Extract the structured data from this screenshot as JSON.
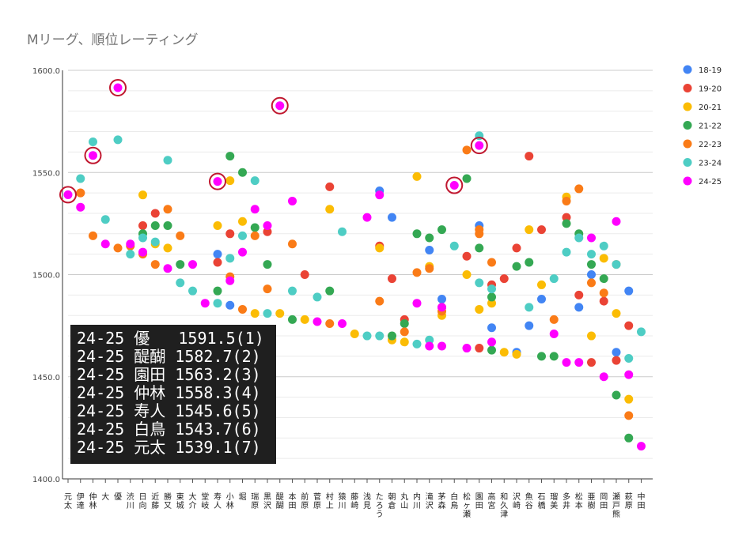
{
  "chart_data": {
    "type": "scatter",
    "title": "Mリーグ、順位レーティング",
    "ylim": [
      1400,
      1600
    ],
    "yticks": [
      "1400.0",
      "1450.0",
      "1500.0",
      "1550.0",
      "1600.0"
    ],
    "categories": [
      "元太",
      "伊達",
      "仲林",
      "大",
      "優",
      "渋川",
      "日向",
      "近藤",
      "勝又",
      "東城",
      "大介",
      "堂岐",
      "寿人",
      "小林",
      "堀",
      "瑞原",
      "黒沢",
      "醍醐",
      "本田",
      "前原",
      "菅原",
      "村上",
      "猿川",
      "藤崎",
      "浅見",
      "たろう",
      "朝倉",
      "丸山",
      "内川",
      "滝沢",
      "茅森",
      "白鳥",
      "松ヶ瀬",
      "園田",
      "高宮",
      "和久津",
      "沢崎",
      "魚谷",
      "石橋",
      "瑠美",
      "多井",
      "松本",
      "亜樹",
      "岡田",
      "瀬戸熊",
      "萩原",
      "中田"
    ],
    "series": [
      {
        "name": "18-19",
        "color": "#4285f4",
        "points": [
          [
            12,
            1510
          ],
          [
            13,
            1485
          ],
          [
            25,
            1541
          ],
          [
            26,
            1528
          ],
          [
            29,
            1512
          ],
          [
            30,
            1488
          ],
          [
            33,
            1524
          ],
          [
            34,
            1474
          ],
          [
            36,
            1462
          ],
          [
            37,
            1475
          ],
          [
            38,
            1488
          ],
          [
            41,
            1484
          ],
          [
            42,
            1500
          ],
          [
            44,
            1462
          ],
          [
            45,
            1492
          ]
        ]
      },
      {
        "name": "19-20",
        "color": "#ea4335",
        "points": [
          [
            1,
            1540
          ],
          [
            6,
            1524
          ],
          [
            7,
            1530
          ],
          [
            12,
            1506
          ],
          [
            13,
            1520
          ],
          [
            16,
            1521
          ],
          [
            19,
            1500
          ],
          [
            21,
            1543
          ],
          [
            25,
            1514
          ],
          [
            26,
            1498
          ],
          [
            27,
            1478
          ],
          [
            30,
            1484
          ],
          [
            32,
            1509
          ],
          [
            33,
            1464
          ],
          [
            34,
            1495
          ],
          [
            35,
            1498
          ],
          [
            36,
            1513
          ],
          [
            37,
            1558
          ],
          [
            38,
            1522
          ],
          [
            40,
            1528
          ],
          [
            41,
            1490
          ],
          [
            42,
            1457
          ],
          [
            43,
            1487
          ],
          [
            44,
            1458
          ],
          [
            45,
            1475
          ]
        ]
      },
      {
        "name": "20-21",
        "color": "#fbbc04",
        "points": [
          [
            6,
            1539
          ],
          [
            7,
            1515
          ],
          [
            8,
            1513
          ],
          [
            12,
            1524
          ],
          [
            13,
            1546
          ],
          [
            14,
            1526
          ],
          [
            15,
            1481
          ],
          [
            17,
            1481
          ],
          [
            19,
            1478
          ],
          [
            21,
            1532
          ],
          [
            23,
            1471
          ],
          [
            25,
            1513
          ],
          [
            26,
            1468
          ],
          [
            27,
            1467
          ],
          [
            28,
            1548
          ],
          [
            29,
            1504
          ],
          [
            30,
            1480
          ],
          [
            32,
            1500
          ],
          [
            33,
            1483
          ],
          [
            34,
            1486
          ],
          [
            35,
            1462
          ],
          [
            36,
            1461
          ],
          [
            37,
            1522
          ],
          [
            38,
            1495
          ],
          [
            40,
            1538
          ],
          [
            42,
            1470
          ],
          [
            43,
            1508
          ],
          [
            44,
            1481
          ],
          [
            45,
            1439
          ]
        ]
      },
      {
        "name": "21-22",
        "color": "#34a853",
        "points": [
          [
            6,
            1520
          ],
          [
            7,
            1524
          ],
          [
            8,
            1524
          ],
          [
            9,
            1505
          ],
          [
            12,
            1492
          ],
          [
            13,
            1558
          ],
          [
            14,
            1550
          ],
          [
            15,
            1523
          ],
          [
            16,
            1505
          ],
          [
            18,
            1478
          ],
          [
            21,
            1492
          ],
          [
            26,
            1470
          ],
          [
            27,
            1476
          ],
          [
            28,
            1520
          ],
          [
            29,
            1518
          ],
          [
            30,
            1522
          ],
          [
            32,
            1547
          ],
          [
            33,
            1513
          ],
          [
            34,
            1489
          ],
          [
            34,
            1463
          ],
          [
            36,
            1504
          ],
          [
            37,
            1506
          ],
          [
            38,
            1460
          ],
          [
            39,
            1460
          ],
          [
            40,
            1525
          ],
          [
            41,
            1520
          ],
          [
            42,
            1505
          ],
          [
            43,
            1498
          ],
          [
            44,
            1441
          ],
          [
            45,
            1420
          ]
        ]
      },
      {
        "name": "22-23",
        "color": "#fa7b17",
        "points": [
          [
            1,
            1540
          ],
          [
            2,
            1519
          ],
          [
            4,
            1513
          ],
          [
            5,
            1514
          ],
          [
            6,
            1510
          ],
          [
            7,
            1505
          ],
          [
            8,
            1532
          ],
          [
            9,
            1519
          ],
          [
            13,
            1499
          ],
          [
            14,
            1483
          ],
          [
            15,
            1519
          ],
          [
            16,
            1493
          ],
          [
            18,
            1515
          ],
          [
            21,
            1476
          ],
          [
            25,
            1487
          ],
          [
            27,
            1472
          ],
          [
            28,
            1501
          ],
          [
            29,
            1503
          ],
          [
            30,
            1482
          ],
          [
            32,
            1561
          ],
          [
            33,
            1520
          ],
          [
            33,
            1522
          ],
          [
            34,
            1506
          ],
          [
            39,
            1478
          ],
          [
            40,
            1536
          ],
          [
            41,
            1542
          ],
          [
            42,
            1496
          ],
          [
            43,
            1491
          ],
          [
            44,
            1505
          ],
          [
            45,
            1431
          ]
        ]
      },
      {
        "name": "23-24",
        "color": "#4ecdc4",
        "points": [
          [
            1,
            1547
          ],
          [
            2,
            1565
          ],
          [
            3,
            1527
          ],
          [
            4,
            1566
          ],
          [
            5,
            1510
          ],
          [
            6,
            1518
          ],
          [
            7,
            1516
          ],
          [
            8,
            1556
          ],
          [
            9,
            1496
          ],
          [
            10,
            1492
          ],
          [
            12,
            1486
          ],
          [
            13,
            1508
          ],
          [
            14,
            1519
          ],
          [
            15,
            1546
          ],
          [
            16,
            1481
          ],
          [
            18,
            1492
          ],
          [
            20,
            1489
          ],
          [
            22,
            1521
          ],
          [
            24,
            1470
          ],
          [
            25,
            1470
          ],
          [
            28,
            1466
          ],
          [
            29,
            1468
          ],
          [
            31,
            1514
          ],
          [
            33,
            1496
          ],
          [
            33,
            1568
          ],
          [
            34,
            1493
          ],
          [
            37,
            1484
          ],
          [
            39,
            1498
          ],
          [
            40,
            1511
          ],
          [
            41,
            1518
          ],
          [
            42,
            1510
          ],
          [
            43,
            1514
          ],
          [
            44,
            1505
          ],
          [
            45,
            1459
          ],
          [
            46,
            1472
          ]
        ]
      },
      {
        "name": "24-25",
        "color": "#ff00ff",
        "points": [
          [
            0,
            1539.1
          ],
          [
            1,
            1533
          ],
          [
            2,
            1558.3
          ],
          [
            3,
            1515
          ],
          [
            4,
            1591.5
          ],
          [
            5,
            1515
          ],
          [
            6,
            1511
          ],
          [
            8,
            1503
          ],
          [
            10,
            1505
          ],
          [
            11,
            1486
          ],
          [
            12,
            1545.6
          ],
          [
            13,
            1497
          ],
          [
            14,
            1511
          ],
          [
            15,
            1532
          ],
          [
            16,
            1524
          ],
          [
            17,
            1582.7
          ],
          [
            18,
            1536
          ],
          [
            20,
            1477
          ],
          [
            22,
            1476
          ],
          [
            24,
            1528
          ],
          [
            25,
            1539
          ],
          [
            28,
            1486
          ],
          [
            29,
            1465
          ],
          [
            30,
            1484
          ],
          [
            30,
            1465
          ],
          [
            31,
            1543.7
          ],
          [
            32,
            1464
          ],
          [
            33,
            1563.2
          ],
          [
            34,
            1467
          ],
          [
            39,
            1471
          ],
          [
            40,
            1457
          ],
          [
            41,
            1457
          ],
          [
            42,
            1518
          ],
          [
            43,
            1450
          ],
          [
            44,
            1526
          ],
          [
            45,
            1451
          ],
          [
            46,
            1416
          ]
        ]
      }
    ],
    "highlighted": [
      [
        0,
        1539.1
      ],
      [
        2,
        1558.3
      ],
      [
        4,
        1591.5
      ],
      [
        12,
        1545.6
      ],
      [
        17,
        1582.7
      ],
      [
        31,
        1543.7
      ],
      [
        33,
        1563.2
      ]
    ],
    "legend_position": "right",
    "grid": true
  },
  "annotation_lines": [
    "24-25 優   1591.5(1)",
    "24-25 醍醐 1582.7(2)",
    "24-25 園田 1563.2(3)",
    "24-25 仲林 1558.3(4)",
    "24-25 寿人 1545.6(5)",
    "24-25 白鳥 1543.7(6)",
    "24-25 元太 1539.1(7)"
  ]
}
